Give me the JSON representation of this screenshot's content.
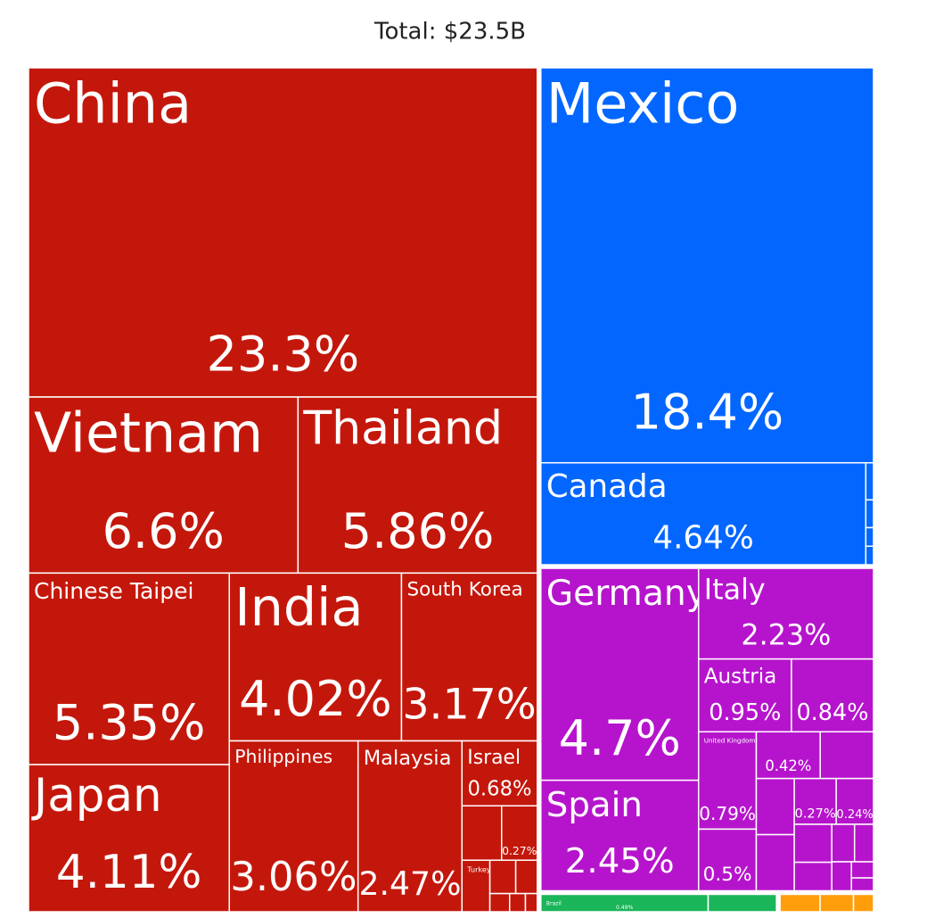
{
  "chart_data": {
    "type": "treemap",
    "title": "Total: $23.5B",
    "groups": [
      {
        "color": "#c4170b",
        "labels": [
          "China",
          "Vietnam",
          "Thailand",
          "Chinese Taipei",
          "Japan",
          "India",
          "South Korea",
          "Philippines",
          "Malaysia",
          "Israel",
          null,
          null,
          "Turkey",
          null,
          null,
          null,
          null,
          null
        ],
        "values": [
          23.3,
          6.6,
          5.86,
          5.35,
          4.11,
          4.02,
          3.17,
          3.06,
          2.47,
          0.68,
          0.3,
          0.27,
          0.2,
          0.12,
          0.1,
          0.05,
          0.04,
          0.03
        ],
        "value_labels": [
          "23.3%",
          "6.6%",
          "5.86%",
          "5.35%",
          "4.11%",
          "4.02%",
          "3.17%",
          "3.06%",
          "2.47%",
          "0.68%",
          null,
          "0.27%",
          null,
          null,
          null,
          null,
          null,
          null
        ]
      },
      {
        "color": "#0366ff",
        "labels": [
          "Mexico",
          "Canada",
          null,
          null,
          null,
          null
        ],
        "values": [
          18.4,
          4.64,
          0.04,
          0.03,
          0.02,
          0.02
        ],
        "value_labels": [
          "18.4%",
          "4.64%",
          null,
          null,
          null,
          null
        ]
      },
      {
        "color": "#b614cc",
        "labels": [
          "Germany",
          "Spain",
          "Italy",
          "Austria",
          null,
          "United Kingdom",
          null,
          null,
          null,
          null,
          null,
          null,
          null,
          null,
          null,
          null,
          null,
          null,
          null,
          null
        ],
        "values": [
          4.7,
          2.45,
          2.23,
          0.95,
          0.84,
          0.79,
          0.5,
          0.42,
          0.35,
          0.3,
          0.3,
          0.27,
          0.24,
          0.2,
          0.15,
          0.12,
          0.1,
          0.08,
          0.05,
          0.04
        ],
        "value_labels": [
          "4.7%",
          "2.45%",
          "2.23%",
          "0.95%",
          "0.84%",
          "0.79%",
          "0.5%",
          "0.42%",
          null,
          null,
          null,
          "0.27%",
          "0.24%",
          null,
          null,
          null,
          null,
          null,
          null,
          null
        ]
      },
      {
        "color": "#1bb55a",
        "labels": [
          "Brazil",
          null
        ],
        "values": [
          0.49,
          0.2
        ],
        "value_labels": [
          "0.49%",
          null
        ]
      },
      {
        "color": "#ff9e0a",
        "labels": [
          null,
          null,
          null
        ],
        "values": [
          0.12,
          0.1,
          0.06
        ],
        "value_labels": [
          null,
          null,
          null
        ]
      }
    ]
  }
}
